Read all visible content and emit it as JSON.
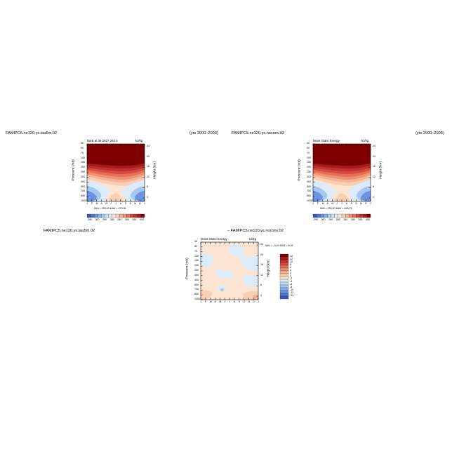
{
  "colors": {
    "warm": [
      "#fbe4d2",
      "#f9cfb3",
      "#f5b393",
      "#ef9273",
      "#e5705a",
      "#d54b3f",
      "#c0302d",
      "#a41a1d",
      "#7f0000"
    ],
    "cool": [
      "#dcebf9",
      "#c2dcf5",
      "#a4c8f0",
      "#84afe9",
      "#6a93e1",
      "#5073d4",
      "#3a55bf",
      "#2438a0",
      "#08156e"
    ],
    "neutral": "#fde4d0",
    "text": "#000000"
  },
  "months": [
    "J",
    "F",
    "M",
    "A",
    "M",
    "J",
    "J",
    "A",
    "S",
    "O",
    "N",
    "D",
    "J"
  ],
  "pressure_ticks": [
    "30",
    "50",
    "70",
    "100",
    "150",
    "200",
    "250",
    "300",
    "400",
    "500",
    "700",
    "850",
    "1000"
  ],
  "height_ticks": [
    "24",
    "20",
    "16",
    "12",
    "8",
    "4"
  ],
  "panels": [
    {
      "case": "FAMIPC5.ne120.ys.tau5m.02",
      "years": "(yrs 2000–2003)",
      "var_label": "MSE at 36.2627 262.5",
      "units": "kJ/kg",
      "ylabel": "Pressure (mb)",
      "ylabel_right": "Height (km)",
      "minmax": "MIN = 293.63  MAX = 470.36",
      "colorbar_labels": [
        "290",
        "300",
        "310",
        "320",
        "330",
        "340",
        "350",
        "360",
        "370",
        "380",
        "390",
        "400"
      ],
      "colorbar_short": [
        "290",
        "300",
        "280",
        "280",
        "240",
        "280",
        "290",
        "400"
      ]
    },
    {
      "case": "FAMIPC5.ne120.ys.noconv.02",
      "years": "(yrs 2000–2003)",
      "var_label": "Moist Static Energy",
      "units": "kJ/kg",
      "ylabel": "Pressure (mb)",
      "ylabel_right": "Height (km)",
      "minmax": "MIN = 295.00  MAX = 469.78",
      "colorbar_short": [
        "290",
        "300",
        "280",
        "280",
        "240",
        "280",
        "290",
        "400"
      ]
    },
    {
      "case_top": "FAMIPC5.ne120.ys.tau5m.02",
      "case": "– FAMIPC5.ne120.ys.noconv.02",
      "var_label": "Moist Static Energy",
      "units": "kJ/kg",
      "ylabel": "Pressure (mb)",
      "ylabel_right": "Height (km)",
      "minmax": "MIN = –3.44  MAX =   8.03",
      "colorbar_labels": [
        "14",
        "12",
        "10",
        "8",
        "6",
        "4",
        "2",
        "0",
        "-2",
        "-4",
        "-6",
        "-8",
        "-10",
        "-12",
        "-14"
      ]
    }
  ],
  "chart_data": [
    {
      "type": "heatmap",
      "title": "MSE at 36.2627 262.5",
      "xlabel": "",
      "ylabel": "Pressure (mb)",
      "x": [
        "J",
        "F",
        "M",
        "A",
        "M",
        "J",
        "J",
        "A",
        "S",
        "O",
        "N",
        "D",
        "J"
      ],
      "ylim": [
        1000,
        30
      ],
      "value_range": [
        293.63,
        470.36
      ],
      "units": "kJ/kg",
      "grid": false
    },
    {
      "type": "heatmap",
      "title": "Moist Static Energy",
      "xlabel": "",
      "ylabel": "Pressure (mb)",
      "x": [
        "J",
        "F",
        "M",
        "A",
        "M",
        "J",
        "J",
        "A",
        "S",
        "O",
        "N",
        "D",
        "J"
      ],
      "ylim": [
        1000,
        30
      ],
      "value_range": [
        295.0,
        469.78
      ],
      "units": "kJ/kg",
      "grid": false
    },
    {
      "type": "heatmap",
      "title": "Moist Static Energy",
      "xlabel": "",
      "ylabel": "Pressure (mb)",
      "x": [
        "J",
        "F",
        "M",
        "A",
        "M",
        "J",
        "J",
        "A",
        "S",
        "O",
        "N",
        "D",
        "J"
      ],
      "ylim": [
        1000,
        30
      ],
      "value_range": [
        -3.44,
        8.03
      ],
      "units": "kJ/kg",
      "grid": false
    }
  ]
}
